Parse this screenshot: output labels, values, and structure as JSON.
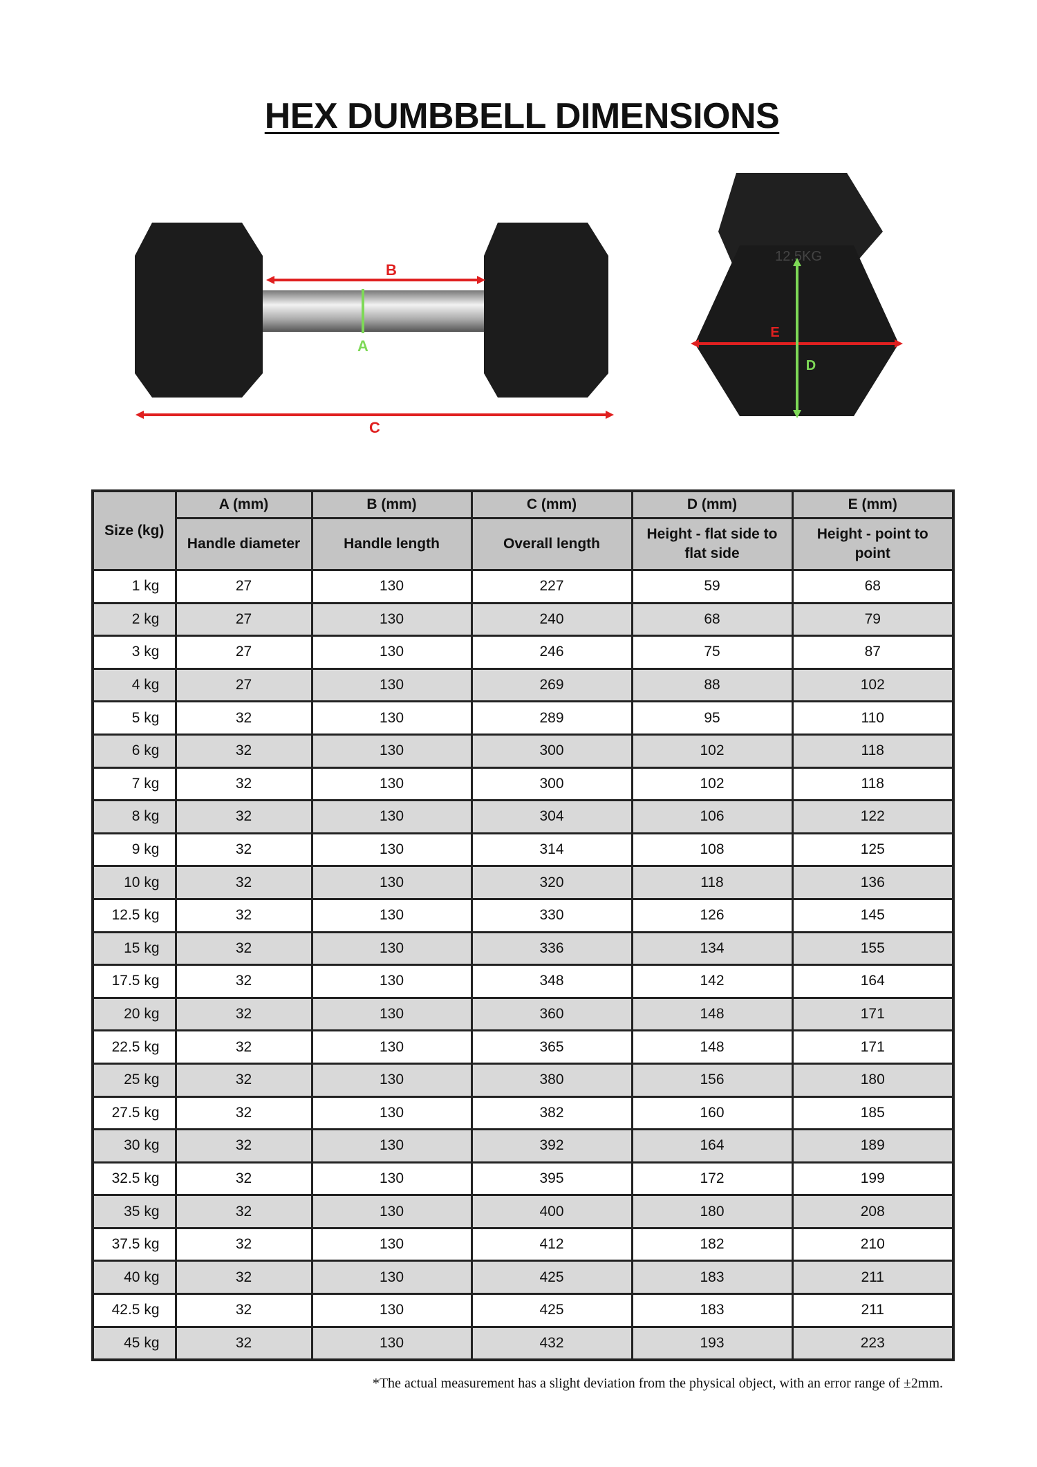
{
  "title": "HEX DUMBBELL DIMENSIONS",
  "diagram_labels": {
    "a": "A",
    "b": "B",
    "c": "C",
    "d": "D",
    "e": "E",
    "embossed_weight": "12.5KG"
  },
  "colors": {
    "measure_red": "#e02020",
    "measure_green": "#7ed957",
    "header_gray": "#c4c4c4",
    "alt_row": "#d9d9d9"
  },
  "table": {
    "size_header": "Size (kg)",
    "columns": [
      {
        "code": "A (mm)",
        "desc": "Handle diameter"
      },
      {
        "code": "B (mm)",
        "desc": "Handle length"
      },
      {
        "code": "C (mm)",
        "desc": "Overall length"
      },
      {
        "code": "D (mm)",
        "desc": "Height - flat side to flat side"
      },
      {
        "code": "E (mm)",
        "desc": "Height - point to point"
      }
    ],
    "rows": [
      [
        "1 kg",
        "27",
        "130",
        "227",
        "59",
        "68"
      ],
      [
        "2 kg",
        "27",
        "130",
        "240",
        "68",
        "79"
      ],
      [
        "3 kg",
        "27",
        "130",
        "246",
        "75",
        "87"
      ],
      [
        "4 kg",
        "27",
        "130",
        "269",
        "88",
        "102"
      ],
      [
        "5 kg",
        "32",
        "130",
        "289",
        "95",
        "110"
      ],
      [
        "6 kg",
        "32",
        "130",
        "300",
        "102",
        "118"
      ],
      [
        "7 kg",
        "32",
        "130",
        "300",
        "102",
        "118"
      ],
      [
        "8 kg",
        "32",
        "130",
        "304",
        "106",
        "122"
      ],
      [
        "9 kg",
        "32",
        "130",
        "314",
        "108",
        "125"
      ],
      [
        "10 kg",
        "32",
        "130",
        "320",
        "118",
        "136"
      ],
      [
        "12.5 kg",
        "32",
        "130",
        "330",
        "126",
        "145"
      ],
      [
        "15 kg",
        "32",
        "130",
        "336",
        "134",
        "155"
      ],
      [
        "17.5 kg",
        "32",
        "130",
        "348",
        "142",
        "164"
      ],
      [
        "20 kg",
        "32",
        "130",
        "360",
        "148",
        "171"
      ],
      [
        "22.5 kg",
        "32",
        "130",
        "365",
        "148",
        "171"
      ],
      [
        "25 kg",
        "32",
        "130",
        "380",
        "156",
        "180"
      ],
      [
        "27.5 kg",
        "32",
        "130",
        "382",
        "160",
        "185"
      ],
      [
        "30 kg",
        "32",
        "130",
        "392",
        "164",
        "189"
      ],
      [
        "32.5 kg",
        "32",
        "130",
        "395",
        "172",
        "199"
      ],
      [
        "35 kg",
        "32",
        "130",
        "400",
        "180",
        "208"
      ],
      [
        "37.5 kg",
        "32",
        "130",
        "412",
        "182",
        "210"
      ],
      [
        "40 kg",
        "32",
        "130",
        "425",
        "183",
        "211"
      ],
      [
        "42.5 kg",
        "32",
        "130",
        "425",
        "183",
        "211"
      ],
      [
        "45 kg",
        "32",
        "130",
        "432",
        "193",
        "223"
      ]
    ]
  },
  "footnote": "*The actual measurement has a slight deviation from the physical object, with an error range of ±2mm."
}
